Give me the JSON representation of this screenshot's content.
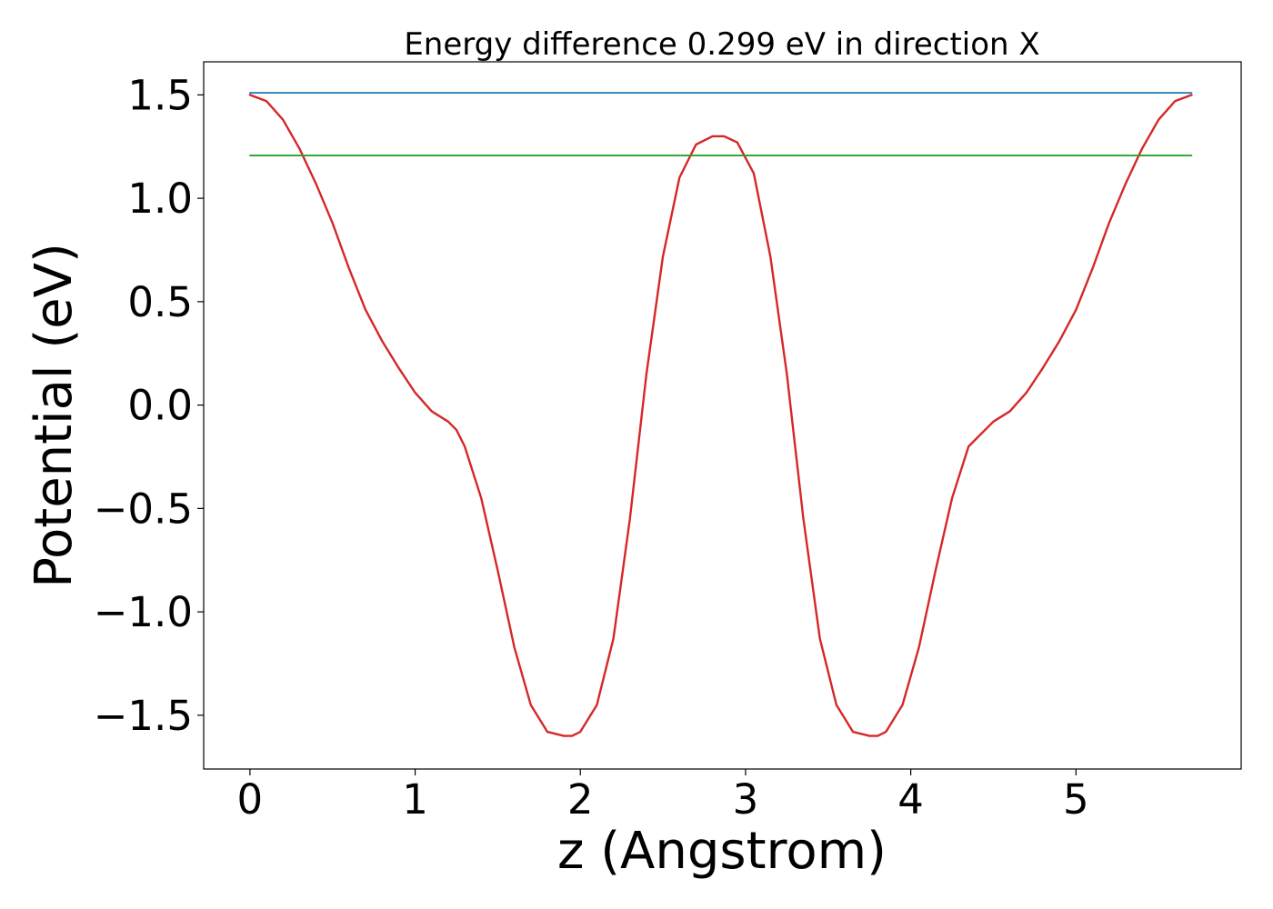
{
  "chart_data": {
    "type": "line",
    "title": "Energy difference 0.299 eV in direction X",
    "xlabel": "z (Angstrom)",
    "ylabel": "Potential (eV)",
    "xlim": [
      -0.28,
      6.0
    ],
    "ylim": [
      -1.76,
      1.66
    ],
    "x_ticks": [
      0,
      1,
      2,
      3,
      4,
      5
    ],
    "x_tick_labels": [
      "0",
      "1",
      "2",
      "3",
      "4",
      "5"
    ],
    "y_ticks": [
      1.5,
      1.0,
      0.5,
      0.0,
      -0.5,
      -1.0,
      -1.5
    ],
    "y_tick_labels": [
      "1.5",
      "1.0",
      "0.5",
      "0.0",
      "−0.5",
      "−1.0",
      "−1.5"
    ],
    "grid": false,
    "series": [
      {
        "color": "#d62728",
        "x": [
          0.0,
          0.1,
          0.2,
          0.3,
          0.4,
          0.5,
          0.6,
          0.7,
          0.8,
          0.9,
          1.0,
          1.1,
          1.2,
          1.25,
          1.3,
          1.4,
          1.5,
          1.6,
          1.7,
          1.8,
          1.9,
          1.95,
          2.0,
          2.1,
          2.2,
          2.3,
          2.4,
          2.5,
          2.6,
          2.7,
          2.8,
          2.87,
          2.95,
          3.05,
          3.15,
          3.25,
          3.35,
          3.45,
          3.55,
          3.65,
          3.75,
          3.8,
          3.85,
          3.95,
          4.05,
          4.15,
          4.25,
          4.35,
          4.45,
          4.5,
          4.6,
          4.7,
          4.8,
          4.9,
          5.0,
          5.1,
          5.2,
          5.3,
          5.4,
          5.5,
          5.6,
          5.7
        ],
        "y": [
          1.5,
          1.47,
          1.38,
          1.24,
          1.07,
          0.88,
          0.66,
          0.46,
          0.31,
          0.18,
          0.06,
          -0.03,
          -0.08,
          -0.12,
          -0.2,
          -0.45,
          -0.8,
          -1.17,
          -1.45,
          -1.58,
          -1.6,
          -1.6,
          -1.58,
          -1.45,
          -1.13,
          -0.55,
          0.15,
          0.72,
          1.1,
          1.26,
          1.3,
          1.3,
          1.27,
          1.12,
          0.72,
          0.15,
          -0.55,
          -1.13,
          -1.45,
          -1.58,
          -1.6,
          -1.6,
          -1.58,
          -1.45,
          -1.17,
          -0.8,
          -0.45,
          -0.2,
          -0.12,
          -0.08,
          -0.03,
          0.06,
          0.18,
          0.31,
          0.46,
          0.66,
          0.88,
          1.07,
          1.24,
          1.38,
          1.47,
          1.5
        ]
      },
      {
        "color": "#1f77b4",
        "x": [
          0.0,
          5.7
        ],
        "y": [
          1.51,
          1.51
        ]
      },
      {
        "color": "#2ca02c",
        "x": [
          0.0,
          5.7
        ],
        "y": [
          1.207,
          1.207
        ]
      }
    ]
  }
}
